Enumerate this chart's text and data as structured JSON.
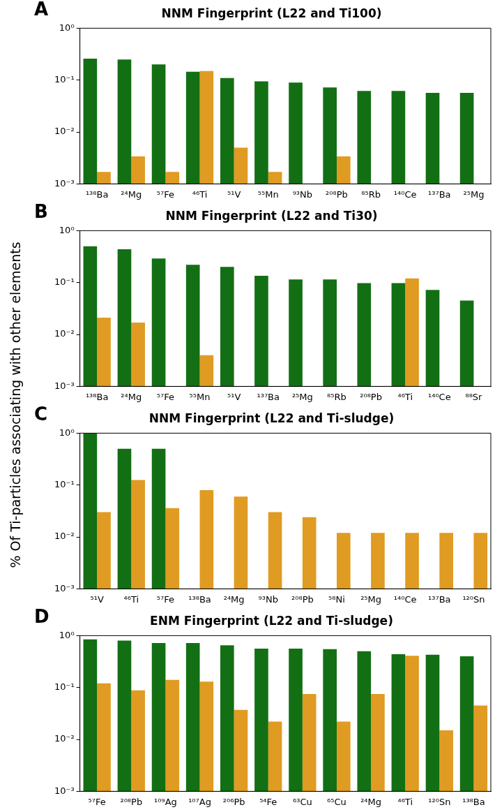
{
  "chart_data": [
    {
      "type": "bar",
      "title": "NNM Fingerprint (L22 and Ti100)",
      "ylabel": "% Of Ti-particles associating with other elements",
      "annotations": [
        "A"
      ],
      "categories": [
        "¹³⁸Ba",
        "²⁴Mg",
        "⁵⁷Fe",
        "⁴⁶Ti",
        "⁵¹V",
        "⁵⁵Mn",
        "⁹³Nb",
        "²⁰⁸Pb",
        "⁸⁵Rb",
        "¹⁴⁰Ce",
        "¹³⁷Ba",
        "²⁵Mg"
      ],
      "log": "y",
      "ylim": [
        0.001,
        1
      ],
      "yticks": [
        {
          "value": 0.001,
          "label": "10⁻³"
        },
        {
          "value": 0.01,
          "label": "10⁻²"
        },
        {
          "value": 0.1,
          "label": "10⁻¹"
        },
        {
          "value": 1,
          "label": "10⁰"
        }
      ],
      "legend": false,
      "grid": false,
      "series": [
        {
          "color": "#136f13",
          "values": [
            0.26,
            0.25,
            0.2,
            0.145,
            0.11,
            0.095,
            0.09,
            0.072,
            0.062,
            0.062,
            0.057,
            0.057
          ]
        },
        {
          "color": "#e09b22",
          "values": [
            0.0017,
            0.0034,
            0.0017,
            0.15,
            0.005,
            0.0017,
            null,
            0.0034,
            null,
            null,
            null,
            null
          ]
        }
      ]
    },
    {
      "type": "bar",
      "title": "NNM Fingerprint (L22 and Ti30)",
      "annotations": [
        "B"
      ],
      "categories": [
        "¹³⁸Ba",
        "²⁴Mg",
        "⁵⁷Fe",
        "⁵⁵Mn",
        "⁵¹V",
        "¹³⁷Ba",
        "²⁵Mg",
        "⁸⁵Rb",
        "²⁰⁸Pb",
        "⁴⁶Ti",
        "¹⁴⁰Ce",
        "⁸⁸Sr"
      ],
      "log": "y",
      "ylim": [
        0.001,
        1
      ],
      "yticks": [
        {
          "value": 0.001,
          "label": "10⁻³"
        },
        {
          "value": 0.01,
          "label": "10⁻²"
        },
        {
          "value": 0.1,
          "label": "10⁻¹"
        },
        {
          "value": 1,
          "label": "10⁰"
        }
      ],
      "legend": false,
      "grid": false,
      "series": [
        {
          "color": "#136f13",
          "values": [
            0.5,
            0.44,
            0.29,
            0.22,
            0.2,
            0.135,
            0.115,
            0.115,
            0.098,
            0.098,
            0.072,
            0.045
          ]
        },
        {
          "color": "#e09b22",
          "values": [
            0.021,
            0.017,
            null,
            0.004,
            null,
            null,
            null,
            null,
            null,
            0.12,
            null,
            null
          ]
        }
      ]
    },
    {
      "type": "bar",
      "title": "NNM Fingerprint (L22 and Ti-sludge)",
      "annotations": [
        "C"
      ],
      "categories": [
        "⁵¹V",
        "⁴⁶Ti",
        "⁵⁷Fe",
        "¹³⁸Ba",
        "²⁴Mg",
        "⁹³Nb",
        "²⁰⁸Pb",
        "⁵⁸Ni",
        "²⁵Mg",
        "¹⁴⁰Ce",
        "¹³⁷Ba",
        "¹²⁰Sn"
      ],
      "log": "y",
      "ylim": [
        0.001,
        1
      ],
      "yticks": [
        {
          "value": 0.001,
          "label": "10⁻³"
        },
        {
          "value": 0.01,
          "label": "10⁻²"
        },
        {
          "value": 0.1,
          "label": "10⁻¹"
        },
        {
          "value": 1,
          "label": "10⁰"
        }
      ],
      "legend": false,
      "grid": false,
      "series": [
        {
          "color": "#136f13",
          "values": [
            1,
            0.5,
            0.5,
            null,
            null,
            null,
            null,
            null,
            null,
            null,
            null,
            null
          ]
        },
        {
          "color": "#e09b22",
          "values": [
            0.03,
            0.125,
            0.036,
            0.08,
            0.06,
            0.03,
            0.024,
            0.012,
            0.012,
            0.012,
            0.012,
            0.012
          ]
        }
      ]
    },
    {
      "type": "bar",
      "title": "ENM Fingerprint (L22 and Ti-sludge)",
      "annotations": [
        "D"
      ],
      "categories": [
        "⁵⁷Fe",
        "²⁰⁸Pb",
        "¹⁰⁹Ag",
        "¹⁰⁷Ag",
        "²⁰⁶Pb",
        "⁵⁴Fe",
        "⁶³Cu",
        "⁶⁵Cu",
        "²⁴Mg",
        "⁴⁶Ti",
        "¹²⁰Sn",
        "¹³⁸Ba"
      ],
      "log": "y",
      "ylim": [
        0.001,
        1
      ],
      "yticks": [
        {
          "value": 0.001,
          "label": "10⁻³"
        },
        {
          "value": 0.01,
          "label": "10⁻²"
        },
        {
          "value": 0.1,
          "label": "10⁻¹"
        },
        {
          "value": 1,
          "label": "10⁰"
        }
      ],
      "legend": false,
      "grid": false,
      "series": [
        {
          "color": "#136f13",
          "values": [
            0.85,
            0.8,
            0.72,
            0.72,
            0.65,
            0.56,
            0.56,
            0.55,
            0.5,
            0.44,
            0.43,
            0.4
          ]
        },
        {
          "color": "#e09b22",
          "values": [
            0.12,
            0.088,
            0.14,
            0.13,
            0.037,
            0.022,
            0.075,
            0.022,
            0.075,
            0.41,
            0.015,
            0.045
          ]
        }
      ]
    }
  ]
}
